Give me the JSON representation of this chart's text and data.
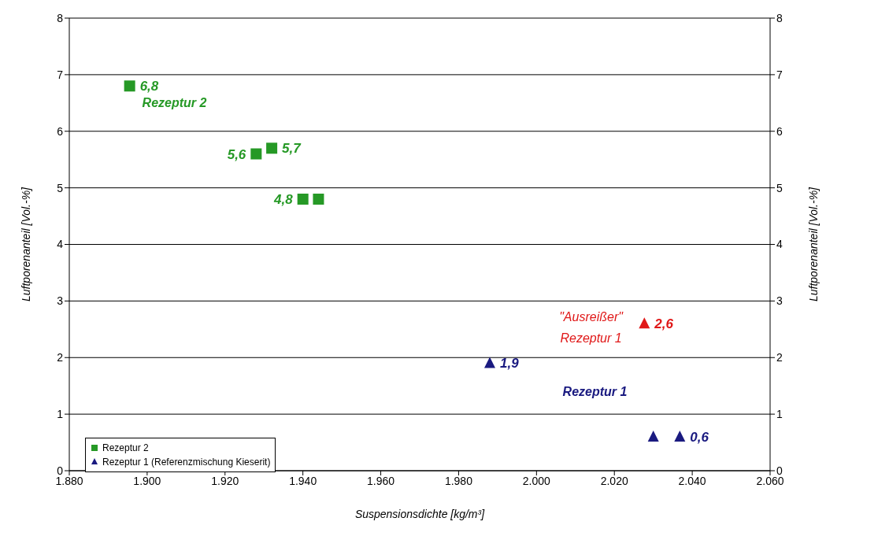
{
  "chart_data": {
    "type": "scatter",
    "xlabel": "Suspensionsdichte [kg/m³]",
    "ylabel": "Luftporenanteil [Vol.-%]",
    "y2label": "Luftporenanteil [Vol.-%]",
    "xlim": [
      1880,
      2060
    ],
    "xticks": [
      {
        "value": 1880,
        "label": "1.880"
      },
      {
        "value": 1900,
        "label": "1.900"
      },
      {
        "value": 1920,
        "label": "1.920"
      },
      {
        "value": 1940,
        "label": "1.940"
      },
      {
        "value": 1960,
        "label": "1.960"
      },
      {
        "value": 1980,
        "label": "1.980"
      },
      {
        "value": 2000,
        "label": "2.000"
      },
      {
        "value": 2020,
        "label": "2.020"
      },
      {
        "value": 2040,
        "label": "2.040"
      },
      {
        "value": 2060,
        "label": "2.060"
      }
    ],
    "ylim": [
      0,
      8
    ],
    "yticks": [
      0,
      1,
      2,
      3,
      4,
      5,
      6,
      7,
      8
    ],
    "y2lim": [
      0,
      8
    ],
    "y2ticks": [
      0,
      1,
      2,
      3,
      4,
      5,
      6,
      7,
      8
    ],
    "grid": "y",
    "legend": "bottom left",
    "series": [
      {
        "name": "Rezeptur 2",
        "color": "#269926",
        "marker": "square",
        "x": [
          1895.5,
          1928,
          1932,
          1940,
          1944
        ],
        "values": [
          6.8,
          5.6,
          5.7,
          4.8,
          4.8
        ],
        "value_labels": [
          "6,8",
          "5,6",
          "5,7",
          "4,8",
          null
        ]
      },
      {
        "name": "Rezeptur 1 (Referenzmischung Kieserit)",
        "color": "#1a1a80",
        "marker": "triangle",
        "x": [
          1988,
          2027.7,
          2030,
          2036.8
        ],
        "values": [
          1.9,
          2.6,
          0.6,
          0.6
        ],
        "colors": [
          "#1a1a80",
          "#e01818",
          "#1a1a80",
          "#1a1a80"
        ],
        "value_labels": [
          "1,9",
          "2,6",
          null,
          "0,6"
        ]
      }
    ],
    "annotations": [
      "Rezeptur 2",
      "Rezeptur 1",
      "\"Ausreißer\"",
      "Rezeptur 1"
    ]
  }
}
